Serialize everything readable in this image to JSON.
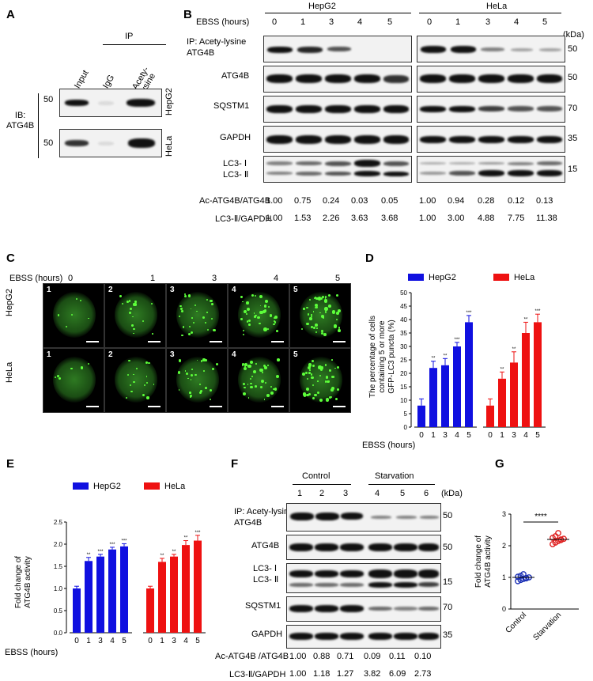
{
  "panels": {
    "A": "A",
    "B": "B",
    "C": "C",
    "D": "D",
    "E": "E",
    "F": "F",
    "G": "G"
  },
  "A": {
    "ip_label": "IP",
    "lanes": [
      "Input",
      "IgG",
      "Acety-\nlysine"
    ],
    "ib_label": "IB:\nATG4B",
    "marker": "50",
    "cells": [
      "HepG2",
      "HeLa"
    ]
  },
  "B": {
    "cells": [
      "HepG2",
      "HeLa"
    ],
    "ebss_label": "EBSS (hours)",
    "hours": [
      "0",
      "1",
      "3",
      "4",
      "5"
    ],
    "kda": "(kDa)",
    "rows": [
      {
        "label": "IP: Acety-lysine\nATG4B",
        "marker": "50"
      },
      {
        "label": "ATG4B",
        "marker": "50"
      },
      {
        "label": "SQSTM1",
        "marker": "70"
      },
      {
        "label": "GAPDH",
        "marker": "35"
      },
      {
        "label": "LC3- Ⅰ\nLC3- Ⅱ",
        "marker": "15"
      }
    ],
    "quant": [
      {
        "label": "Ac-ATG4B/ATG4B",
        "hepg2": [
          "1.00",
          "0.75",
          "0.24",
          "0.03",
          "0.05"
        ],
        "hela": [
          "1.00",
          "0.94",
          "0.28",
          "0.12",
          "0.13"
        ]
      },
      {
        "label": "LC3-Ⅱ/GAPDH",
        "hepg2": [
          "1.00",
          "1.53",
          "2.26",
          "3.63",
          "3.68"
        ],
        "hela": [
          "1.00",
          "3.00",
          "4.88",
          "7.75",
          "11.38"
        ]
      }
    ]
  },
  "C": {
    "ebss_label": "EBSS (hours)",
    "hours": [
      "0",
      "1",
      "3",
      "4",
      "5"
    ],
    "rows": [
      "HepG2",
      "HeLa"
    ],
    "cell_numbers": [
      "1",
      "2",
      "3",
      "4",
      "5"
    ]
  },
  "chart_data": [
    {
      "panel": "D",
      "type": "bar",
      "ylabel": "The percentage of cells\ncontaining 5 or more\nGFP-LC3 puncta (%)",
      "xlabel": "EBSS (hours)",
      "categories": [
        "0",
        "1",
        "3",
        "4",
        "5"
      ],
      "ylim": [
        0,
        50
      ],
      "yticks": [
        "0",
        "5",
        "10",
        "15",
        "20",
        "25",
        "30",
        "35",
        "40",
        "45",
        "50"
      ],
      "series": [
        {
          "name": "HepG2",
          "color": "#1010e0",
          "values": [
            8,
            22,
            23,
            30,
            39
          ],
          "errors": [
            2.5,
            2.5,
            2.5,
            1.5,
            2.5
          ],
          "sig": [
            "",
            "**",
            "**",
            "***",
            "***"
          ]
        },
        {
          "name": "HeLa",
          "color": "#ee1111",
          "values": [
            8,
            18,
            24,
            35,
            39
          ],
          "errors": [
            2.5,
            2.5,
            4,
            4,
            3
          ],
          "sig": [
            "",
            "**",
            "**",
            "**",
            "***"
          ]
        }
      ]
    },
    {
      "panel": "E",
      "type": "bar",
      "ylabel": "Fold change of\nATG4B activity",
      "xlabel": "EBSS (hours)",
      "categories": [
        "0",
        "1",
        "3",
        "4",
        "5"
      ],
      "ylim": [
        0,
        2.5
      ],
      "yticks": [
        "0.0",
        "0.5",
        "1.0",
        "1.5",
        "2.0",
        "2.5"
      ],
      "series": [
        {
          "name": "HepG2",
          "color": "#1010e0",
          "values": [
            1.0,
            1.62,
            1.72,
            1.88,
            1.95
          ],
          "errors": [
            0.05,
            0.08,
            0.05,
            0.05,
            0.06
          ],
          "sig": [
            "",
            "**",
            "***",
            "***",
            "***"
          ]
        },
        {
          "name": "HeLa",
          "color": "#ee1111",
          "values": [
            1.0,
            1.6,
            1.72,
            1.98,
            2.08
          ],
          "errors": [
            0.05,
            0.08,
            0.05,
            0.1,
            0.12
          ],
          "sig": [
            "",
            "**",
            "**",
            "**",
            "***"
          ]
        }
      ]
    },
    {
      "panel": "G",
      "type": "scatter",
      "ylabel": "Fold change of\nATG4B activity",
      "categories": [
        "Control",
        "Starvation"
      ],
      "ylim": [
        0,
        3
      ],
      "yticks": [
        "0",
        "1",
        "2",
        "3"
      ],
      "significance": "****",
      "series": [
        {
          "name": "Control",
          "color": "#1a2fb5",
          "values": [
            0.88,
            0.92,
            0.95,
            0.98,
            1.0,
            1.02,
            1.05,
            1.1,
            0.97
          ],
          "mean": 1.0
        },
        {
          "name": "Starvation",
          "color": "#e02020",
          "values": [
            2.05,
            2.1,
            2.15,
            2.2,
            2.22,
            2.25,
            2.3,
            2.4,
            2.18
          ],
          "mean": 2.2
        }
      ]
    }
  ],
  "F": {
    "groups": [
      "Control",
      "Starvation"
    ],
    "lanes": [
      "1",
      "2",
      "3",
      "4",
      "5",
      "6"
    ],
    "kda": "(kDa)",
    "rows": [
      {
        "label": "IP: Acety-lysine\nATG4B",
        "marker": "50"
      },
      {
        "label": "ATG4B",
        "marker": "50"
      },
      {
        "label": "LC3- Ⅰ\nLC3- Ⅱ",
        "marker": "15"
      },
      {
        "label": "SQSTM1",
        "marker": "70"
      },
      {
        "label": "GAPDH",
        "marker": "35"
      }
    ],
    "quant": [
      {
        "label": "Ac-ATG4B /ATG4B",
        "values": [
          "1.00",
          "0.88",
          "0.71",
          "0.09",
          "0.11",
          "0.10"
        ]
      },
      {
        "label": "LC3-Ⅱ/GAPDH",
        "values": [
          "1.00",
          "1.18",
          "1.27",
          "3.82",
          "6.09",
          "2.73"
        ]
      }
    ]
  }
}
